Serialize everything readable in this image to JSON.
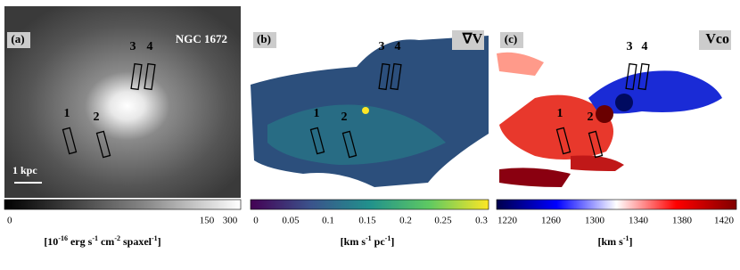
{
  "panels": [
    {
      "label": "(a)",
      "name": "NGC 1672",
      "slits": [
        "1",
        "2",
        "3",
        "4"
      ],
      "scale_bar": "1 kpc",
      "colorbar": {
        "ticks": [
          0,
          150,
          300
        ],
        "unit": [
          "[10",
          "-16",
          " erg s",
          "-1",
          " cm",
          "-2",
          " spaxel",
          "-1",
          "]"
        ]
      }
    },
    {
      "label": "(b)",
      "name": "∇V",
      "slits": [
        "1",
        "2",
        "3",
        "4"
      ],
      "colorbar": {
        "ticks": [
          0,
          0.05,
          0.1,
          0.15,
          0.2,
          0.25,
          0.3
        ],
        "unit": [
          "[km s",
          "-1",
          " pc",
          "-1",
          "]"
        ]
      }
    },
    {
      "label": "(c)",
      "name": "Vco",
      "slits": [
        "1",
        "2",
        "3",
        "4"
      ],
      "colorbar": {
        "ticks": [
          1220,
          1260,
          1300,
          1340,
          1380,
          1420
        ],
        "unit": [
          "[km s",
          "-1",
          "]"
        ]
      }
    }
  ]
}
